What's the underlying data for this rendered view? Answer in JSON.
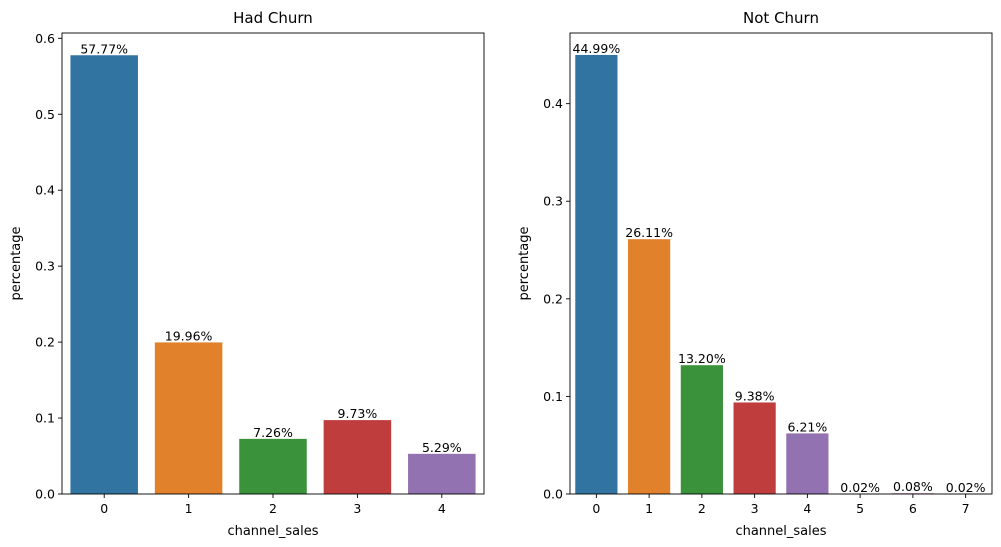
{
  "chart_data": [
    {
      "type": "bar",
      "title": "Had Churn",
      "xlabel": "channel_sales",
      "ylabel": "percentage",
      "categories": [
        "0",
        "1",
        "2",
        "3",
        "4"
      ],
      "values": [
        0.5777,
        0.1996,
        0.0726,
        0.0973,
        0.0529
      ],
      "data_labels": [
        "57.77%",
        "19.96%",
        "7.26%",
        "9.73%",
        "5.29%"
      ],
      "ylim": [
        0,
        0.607
      ],
      "yticks": [
        0.0,
        0.1,
        0.2,
        0.3,
        0.4,
        0.5,
        0.6
      ],
      "ytick_labels": [
        "0.0",
        "0.1",
        "0.2",
        "0.3",
        "0.4",
        "0.5",
        "0.6"
      ],
      "colors": [
        "#3274a1",
        "#e1812c",
        "#3a923a",
        "#c03d3e",
        "#9372b2"
      ],
      "grid": false,
      "legend": "none"
    },
    {
      "type": "bar",
      "title": "Not Churn",
      "xlabel": "channel_sales",
      "ylabel": "percentage",
      "categories": [
        "0",
        "1",
        "2",
        "3",
        "4",
        "5",
        "6",
        "7"
      ],
      "values": [
        0.4499,
        0.2611,
        0.132,
        0.0938,
        0.0621,
        0.0002,
        0.0008,
        0.0002
      ],
      "data_labels": [
        "44.99%",
        "26.11%",
        "13.20%",
        "9.38%",
        "6.21%",
        "0.02%",
        "0.08%",
        "0.02%"
      ],
      "ylim": [
        0,
        0.4724
      ],
      "yticks": [
        0.0,
        0.1,
        0.2,
        0.3,
        0.4
      ],
      "ytick_labels": [
        "0.0",
        "0.1",
        "0.2",
        "0.3",
        "0.4"
      ],
      "colors": [
        "#3274a1",
        "#e1812c",
        "#3a923a",
        "#c03d3e",
        "#9372b2",
        "#845b53",
        "#d684bd",
        "#7f7f7f"
      ],
      "grid": false,
      "legend": "none"
    }
  ]
}
